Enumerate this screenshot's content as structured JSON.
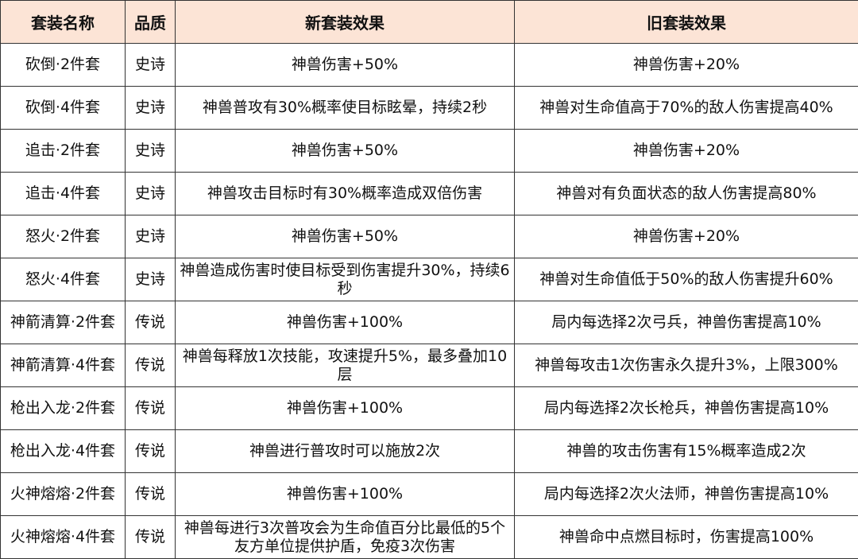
{
  "headers": [
    "套装名称",
    "品质",
    "新套装效果",
    "旧套装效果"
  ],
  "rows": [
    [
      "砍倒·2件套",
      "史诗",
      "神兽伤害+50%",
      "神兽伤害+20%"
    ],
    [
      "砍倒·4件套",
      "史诗",
      "神兽普攻有30%概率使目标眩晕，持续2秒",
      "神兽对生命值高于70%的敌人伤害提高40%"
    ],
    [
      "追击·2件套",
      "史诗",
      "神兽伤害+50%",
      "神兽伤害+20%"
    ],
    [
      "追击·4件套",
      "史诗",
      "神兽攻击目标时有30%概率造成双倍伤害",
      "神兽对有负面状态的敌人伤害提高80%"
    ],
    [
      "怒火·2件套",
      "史诗",
      "神兽伤害+50%",
      "神兽伤害+20%"
    ],
    [
      "怒火·4件套",
      "史诗",
      "神兽造成伤害时使目标受到伤害提升30%，持续6秒",
      "神兽对生命值低于50%的敌人伤害提升60%"
    ],
    [
      "神箭清算·2件套",
      "传说",
      "神兽伤害+100%",
      "局内每选择2次弓兵，神兽伤害提高10%"
    ],
    [
      "神箭清算·4件套",
      "传说",
      "神兽每释放1次技能，攻速提升5%，最多叠加10层",
      "神兽每攻击1次伤害永久提升3%，上限300%"
    ],
    [
      "枪出入龙·2件套",
      "传说",
      "神兽伤害+100%",
      "局内每选择2次长枪兵，神兽伤害提高10%"
    ],
    [
      "枪出入龙·4件套",
      "传说",
      "神兽进行普攻时可以施放2次",
      "神兽的攻击伤害有15%概率造成2次"
    ],
    [
      "火神熔熔·2件套",
      "传说",
      "神兽伤害+100%",
      "局内每选择2次火法师，神兽伤害提高10%"
    ],
    [
      "火神熔熔·4件套",
      "传说",
      "神兽每进行3次普攻会为生命值百分比最低的5个友方单位提供护盾，免疫3次伤害",
      "神兽命中点燃目标时，伤害提高100%"
    ]
  ]
}
